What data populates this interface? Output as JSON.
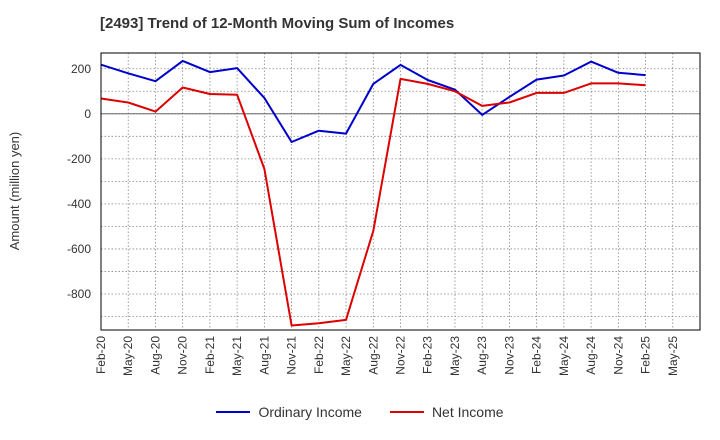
{
  "chart_data": {
    "type": "line",
    "title": "[2493]  Trend of 12-Month Moving Sum of Incomes",
    "xlabel": "",
    "ylabel": "Amount (million yen)",
    "categories": [
      "Feb-20",
      "May-20",
      "Aug-20",
      "Nov-20",
      "Feb-21",
      "May-21",
      "Aug-21",
      "Nov-21",
      "Feb-22",
      "May-22",
      "Aug-22",
      "Nov-22",
      "Feb-23",
      "May-23",
      "Aug-23",
      "Nov-23",
      "Feb-24",
      "May-24",
      "Aug-24",
      "Nov-24",
      "Feb-25",
      "May-25"
    ],
    "ylim": [
      -960,
      270
    ],
    "yticks": [
      200,
      0,
      -200,
      -400,
      -600,
      -800
    ],
    "ytick_labels": [
      "200",
      "0",
      "-200",
      "-400",
      "-600",
      "-800"
    ],
    "grid": true,
    "legend_position": "bottom",
    "series": [
      {
        "name": "Ordinary Income",
        "color": "#0000cc",
        "values": [
          218,
          180,
          145,
          235,
          185,
          203,
          70,
          -125,
          -75,
          -88,
          133,
          217,
          150,
          107,
          -5,
          75,
          152,
          170,
          232,
          182,
          172,
          null
        ]
      },
      {
        "name": "Net Income",
        "color": "#dd0000",
        "values": [
          68,
          50,
          10,
          117,
          88,
          85,
          -245,
          -940,
          -930,
          -915,
          -520,
          155,
          133,
          100,
          35,
          50,
          93,
          93,
          135,
          135,
          127,
          null
        ]
      }
    ]
  }
}
